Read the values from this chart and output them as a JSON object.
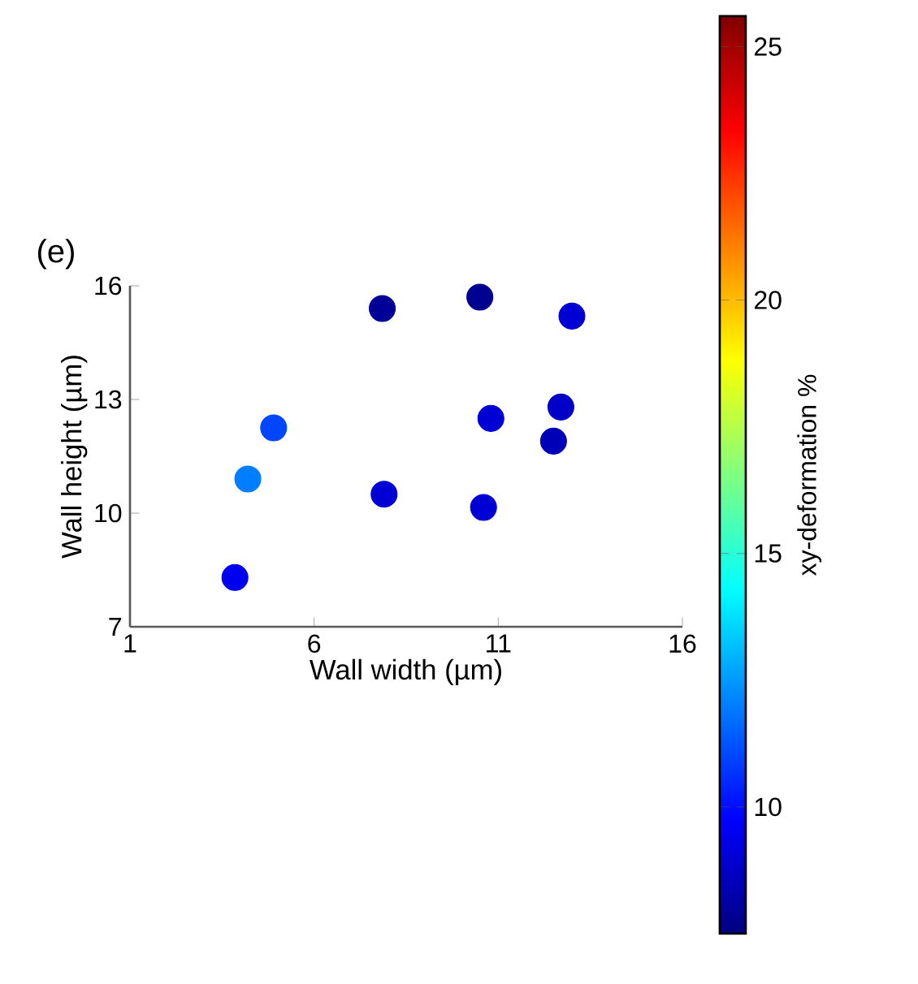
{
  "chart_data": {
    "type": "scatter",
    "title": "(e)",
    "xlabel": "Wall width (µm)",
    "ylabel": "Wall height (µm)",
    "clabel": "xy-deformation %",
    "x": [
      7.85,
      10.5,
      13.0,
      12.7,
      10.8,
      12.5,
      4.9,
      4.2,
      7.9,
      10.6,
      3.85
    ],
    "values": [
      15.4,
      15.7,
      15.2,
      12.8,
      12.5,
      11.9,
      12.25,
      10.9,
      10.5,
      10.15,
      8.3
    ],
    "cvalues": [
      7.9,
      7.8,
      9,
      8.8,
      9,
      8.5,
      11,
      12,
      9,
      9,
      9.5
    ],
    "marker": "circle",
    "xlim": [
      1,
      16
    ],
    "ylim": [
      7,
      16
    ],
    "xticks": [
      1,
      6,
      11,
      16
    ],
    "yticks": [
      7,
      10,
      13,
      16
    ],
    "clim": [
      7.5,
      25.6
    ],
    "cticks": [
      10,
      15,
      20,
      25
    ]
  }
}
